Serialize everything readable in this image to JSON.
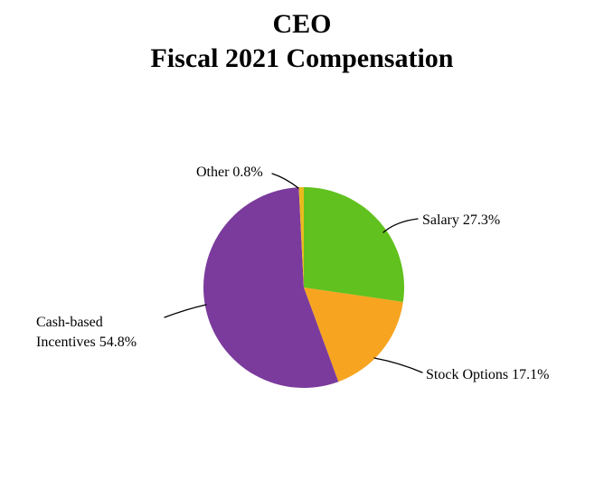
{
  "title": {
    "line1": "CEO",
    "line2": "Fiscal 2021 Compensation"
  },
  "chart_data": {
    "type": "pie",
    "title": "CEO Fiscal 2021 Compensation",
    "legend_position": "none",
    "label_style": "outside callouts with leader lines",
    "start_angle": "12 o'clock, clockwise",
    "slices": [
      {
        "label": "Salary",
        "value": 27.3,
        "color": "#61C11E",
        "callout": "Salary 27.3%"
      },
      {
        "label": "Stock Options",
        "value": 17.1,
        "color": "#F7A420",
        "callout": "Stock Options 17.1%"
      },
      {
        "label": "Cash-based Incentives",
        "value": 54.8,
        "color": "#7B3B9C",
        "callout": "Cash-based\nIncentives 54.8%"
      },
      {
        "label": "Other",
        "value": 0.8,
        "color": "#EBB91E",
        "callout": "Other 0.8%"
      }
    ],
    "leader_line_color": "#000000"
  }
}
